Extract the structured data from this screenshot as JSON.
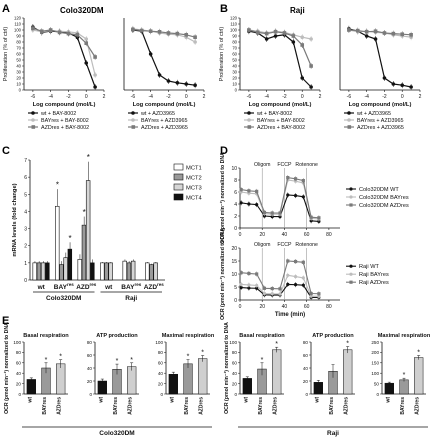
{
  "panels": {
    "A": {
      "letter": "A",
      "title": "Colo320DM"
    },
    "B": {
      "letter": "B",
      "title": "Raji"
    },
    "C": {
      "letter": "C"
    },
    "D": {
      "letter": "D"
    },
    "E": {
      "letter": "E"
    }
  },
  "colors": {
    "black": "#111111",
    "gray": "#7a7a7a",
    "light": "#bdbdbd",
    "grid": "#9a9a9a"
  },
  "chart_data": [
    {
      "id": "A-left",
      "type": "line",
      "xlabel": "Log compound (mol/L)",
      "ylabel": "Proliferation (% of ctrl)",
      "xlim": [
        -7,
        2
      ],
      "ylim": [
        0,
        120
      ],
      "xticks": [
        "-6",
        "-4",
        "-2",
        "0",
        "2"
      ],
      "yticks": [
        "0",
        "10",
        "20",
        "30",
        "40",
        "50",
        "60",
        "70",
        "80",
        "90",
        "100",
        "110",
        "120"
      ],
      "series": [
        {
          "name": "wt + BAY-8002",
          "x": [
            -6,
            -5,
            -4,
            -3,
            -2,
            -1,
            0,
            1
          ],
          "values": [
            105,
            96,
            98,
            97,
            95,
            88,
            45,
            5
          ]
        },
        {
          "name": "BAYres + BAY-8002",
          "x": [
            -6,
            -5,
            -4,
            -3,
            -2,
            -1,
            0,
            1
          ],
          "values": [
            100,
            97,
            99,
            98,
            97,
            95,
            85,
            25
          ]
        },
        {
          "name": "AZDres + BAY-8002",
          "x": [
            -6,
            -5,
            -4,
            -3,
            -2,
            -1,
            0,
            1
          ],
          "values": [
            103,
            98,
            100,
            96,
            94,
            92,
            78,
            55
          ]
        }
      ]
    },
    {
      "id": "A-right",
      "type": "line",
      "xlabel": "Log compound (mol/L)",
      "ylabel": "",
      "xlim": [
        -7,
        2
      ],
      "ylim": [
        0,
        120
      ],
      "xticks": [
        "-6",
        "-4",
        "-2",
        "0",
        "2"
      ],
      "yticks": [],
      "series": [
        {
          "name": "wt + AZD3965",
          "x": [
            -6,
            -5,
            -4,
            -3,
            -2,
            -1,
            0,
            1
          ],
          "values": [
            100,
            98,
            60,
            25,
            15,
            12,
            10,
            8
          ]
        },
        {
          "name": "BAYres + AZD3965",
          "x": [
            -6,
            -5,
            -4,
            -3,
            -2,
            -1,
            0,
            1
          ],
          "values": [
            102,
            100,
            98,
            95,
            93,
            92,
            88,
            80
          ]
        },
        {
          "name": "AZDres + AZD3965",
          "x": [
            -6,
            -5,
            -4,
            -3,
            -2,
            -1,
            0,
            1
          ],
          "values": [
            101,
            99,
            98,
            97,
            95,
            94,
            92,
            88
          ]
        }
      ]
    },
    {
      "id": "B-left",
      "type": "line",
      "xlabel": "Log compound (mol/L)",
      "ylabel": "Proliferation (% of ctrl)",
      "xlim": [
        -7,
        2
      ],
      "ylim": [
        0,
        120
      ],
      "xticks": [
        "-6",
        "-4",
        "-2",
        "0",
        "2"
      ],
      "yticks": [
        "0",
        "10",
        "20",
        "30",
        "40",
        "50",
        "60",
        "70",
        "80",
        "90",
        "100",
        "110",
        "120"
      ],
      "series": [
        {
          "name": "wt + BAY-8002",
          "x": [
            -6,
            -5,
            -4,
            -3,
            -2,
            -1,
            0,
            1
          ],
          "values": [
            98,
            95,
            85,
            90,
            92,
            80,
            20,
            5
          ]
        },
        {
          "name": "BAYres + BAY-8002",
          "x": [
            -6,
            -5,
            -4,
            -3,
            -2,
            -1,
            0,
            1
          ],
          "values": [
            100,
            98,
            95,
            98,
            96,
            92,
            88,
            85
          ]
        },
        {
          "name": "AZDres + BAY-8002",
          "x": [
            -6,
            -5,
            -4,
            -3,
            -2,
            -1,
            0,
            1
          ],
          "values": [
            100,
            96,
            94,
            97,
            95,
            90,
            75,
            40
          ]
        }
      ]
    },
    {
      "id": "B-right",
      "type": "line",
      "xlabel": "Log compound (mol/L)",
      "ylabel": "",
      "xlim": [
        -7,
        2
      ],
      "ylim": [
        0,
        120
      ],
      "xticks": [
        "-6",
        "-4",
        "-2",
        "0",
        "2"
      ],
      "yticks": [],
      "series": [
        {
          "name": "wt + AZD3965",
          "x": [
            -6,
            -5,
            -4,
            -3,
            -2,
            -1,
            0,
            1
          ],
          "values": [
            102,
            98,
            90,
            85,
            20,
            10,
            8,
            5
          ]
        },
        {
          "name": "BAYres + AZD3965",
          "x": [
            -6,
            -5,
            -4,
            -3,
            -2,
            -1,
            0,
            1
          ],
          "values": [
            100,
            97,
            98,
            96,
            95,
            92,
            90,
            88
          ]
        },
        {
          "name": "AZDres + AZD3965",
          "x": [
            -6,
            -5,
            -4,
            -3,
            -2,
            -1,
            0,
            1
          ],
          "values": [
            100,
            99,
            97,
            98,
            95,
            94,
            93,
            92
          ]
        }
      ]
    },
    {
      "id": "C",
      "type": "bar",
      "ylabel": "mRNA levels (fold change)",
      "ylim": [
        0,
        7
      ],
      "yticks": [
        "0",
        "1",
        "2",
        "3",
        "4",
        "5",
        "6",
        "7"
      ],
      "groups": [
        {
          "label": "wt",
          "superscript": "",
          "cell": "Colo320DM"
        },
        {
          "label": "BAY",
          "superscript": "res",
          "cell": "Colo320DM"
        },
        {
          "label": "AZD",
          "superscript": "res",
          "cell": "Colo320DM"
        },
        {
          "label": "wt",
          "superscript": "",
          "cell": "Raji"
        },
        {
          "label": "BAY",
          "superscript": "res",
          "cell": "Raji"
        },
        {
          "label": "AZD",
          "superscript": "res",
          "cell": "Raji"
        }
      ],
      "cell_labels": [
        "Colo320DM",
        "Raji"
      ],
      "series": [
        {
          "name": "MCT1",
          "values": [
            1.0,
            4.3,
            1.2,
            1.0,
            1.1,
            1.0
          ]
        },
        {
          "name": "MCT2",
          "values": [
            1.0,
            0.9,
            3.2,
            1.0,
            1.0,
            0.9
          ]
        },
        {
          "name": "MCT3",
          "values": [
            1.0,
            1.3,
            5.8,
            1.0,
            1.1,
            1.0
          ]
        },
        {
          "name": "MCT4",
          "values": [
            1.0,
            1.8,
            1.0,
            0,
            0,
            0
          ]
        }
      ],
      "errors": [
        [
          0.1,
          1.0,
          0.3,
          0.05,
          0.1,
          0.05
        ],
        [
          0.1,
          0.2,
          0.5,
          0.05,
          0.1,
          0.05
        ],
        [
          0.1,
          0.3,
          1.1,
          0.05,
          0.1,
          0.05
        ],
        [
          0.1,
          0.4,
          0.2,
          0,
          0,
          0
        ]
      ],
      "stars": [
        [
          1,
          0
        ],
        [
          1,
          3
        ],
        [
          2,
          1
        ],
        [
          2,
          2
        ]
      ]
    },
    {
      "id": "D-top",
      "type": "line",
      "ylabel": "OCR (pmol min⁻¹) normalized to DNA",
      "xlim": [
        0,
        90
      ],
      "ylim": [
        0,
        10
      ],
      "xticks": [
        "0",
        "20",
        "40",
        "60",
        "80"
      ],
      "yticks": [
        "0",
        "2",
        "4",
        "6",
        "8",
        "10"
      ],
      "events": [
        {
          "label": "Oligom",
          "x": 20
        },
        {
          "label": "FCCP",
          "x": 40
        },
        {
          "label": "Rotenone",
          "x": 60
        }
      ],
      "series": [
        {
          "name": "Colo320DM WT",
          "x": [
            1,
            8,
            15,
            22,
            29,
            36,
            43,
            50,
            57,
            64,
            71
          ],
          "values": [
            4.2,
            4.0,
            3.9,
            2.0,
            1.9,
            1.9,
            5.5,
            5.4,
            5.2,
            1.2,
            1.1
          ]
        },
        {
          "name": "Colo320DM BAYres",
          "x": [
            1,
            8,
            15,
            22,
            29,
            36,
            43,
            50,
            57,
            64,
            71
          ],
          "values": [
            6.0,
            5.8,
            5.7,
            2.4,
            2.3,
            2.3,
            8.0,
            7.8,
            7.5,
            1.6,
            1.5
          ]
        },
        {
          "name": "Colo320DM AZDres",
          "x": [
            1,
            8,
            15,
            22,
            29,
            36,
            43,
            50,
            57,
            64,
            71
          ],
          "values": [
            6.4,
            6.2,
            6.1,
            2.6,
            2.5,
            2.5,
            8.4,
            8.2,
            7.9,
            1.8,
            1.7
          ]
        }
      ]
    },
    {
      "id": "D-bottom",
      "type": "line",
      "xlabel": "Time (min)",
      "ylabel": "OCR (pmol min⁻¹) normalized to DNA",
      "xlim": [
        0,
        90
      ],
      "ylim": [
        0,
        20
      ],
      "xticks": [
        "0",
        "20",
        "40",
        "60",
        "80"
      ],
      "yticks": [
        "0",
        "5",
        "10",
        "15",
        "20"
      ],
      "events": [
        {
          "label": "Oligom",
          "x": 20
        },
        {
          "label": "FCCP",
          "x": 40
        },
        {
          "label": "Rotenone",
          "x": 60
        }
      ],
      "series": [
        {
          "name": "Raji WT",
          "x": [
            1,
            8,
            15,
            22,
            29,
            36,
            43,
            50,
            57,
            64,
            71
          ],
          "values": [
            4.8,
            4.6,
            4.5,
            2.0,
            1.9,
            1.9,
            6.0,
            5.9,
            5.7,
            1.0,
            1.0
          ]
        },
        {
          "name": "Raji BAYres",
          "x": [
            1,
            8,
            15,
            22,
            29,
            36,
            43,
            50,
            57,
            64,
            71
          ],
          "values": [
            6.0,
            5.8,
            5.6,
            2.5,
            2.4,
            2.3,
            9.5,
            9.0,
            8.5,
            1.5,
            1.4
          ]
        },
        {
          "name": "Raji AZDres",
          "x": [
            1,
            8,
            15,
            22,
            29,
            36,
            43,
            50,
            57,
            64,
            71
          ],
          "values": [
            10.5,
            10.2,
            10.0,
            4.5,
            4.4,
            4.3,
            15.0,
            14.8,
            14.5,
            2.5,
            2.4
          ]
        }
      ]
    },
    {
      "id": "E-colo",
      "type": "bar",
      "cell_line": "Colo320DM",
      "ylabel": "OCR (pmol min⁻¹) normalized to DNA",
      "categories": [
        "wt",
        "BAYres",
        "AZDres"
      ],
      "subplots": [
        {
          "title": "Basal respiration",
          "ylim": [
            0,
            100
          ],
          "yticks": [
            "0",
            "20",
            "40",
            "60",
            "80",
            "100"
          ],
          "values": [
            28,
            50,
            58
          ],
          "errors": [
            3,
            10,
            8
          ],
          "stars": [
            1,
            2
          ]
        },
        {
          "title": "ATP production",
          "ylim": [
            0,
            80
          ],
          "yticks": [
            "0",
            "20",
            "40",
            "60",
            "80"
          ],
          "values": [
            20,
            38,
            42
          ],
          "errors": [
            3,
            8,
            6
          ],
          "stars": [
            1,
            2
          ]
        },
        {
          "title": "Maximal respiration",
          "ylim": [
            0,
            100
          ],
          "yticks": [
            "0",
            "20",
            "40",
            "60",
            "80",
            "100"
          ],
          "values": [
            38,
            58,
            68
          ],
          "errors": [
            4,
            8,
            6
          ],
          "stars": [
            1,
            2
          ]
        }
      ]
    },
    {
      "id": "E-raji",
      "type": "bar",
      "cell_line": "Raji",
      "ylabel": "OCR (pmol min⁻¹) normalized to DNA",
      "categories": [
        "wt",
        "BAYres",
        "AZDres"
      ],
      "subplots": [
        {
          "title": "Basal respiration",
          "ylim": [
            0,
            100
          ],
          "yticks": [
            "0",
            "20",
            "40",
            "60",
            "80",
            "100"
          ],
          "values": [
            30,
            48,
            85
          ],
          "errors": [
            3,
            12,
            5
          ],
          "stars": [
            1,
            2
          ]
        },
        {
          "title": "ATP production",
          "ylim": [
            0,
            80
          ],
          "yticks": [
            "0",
            "20",
            "40",
            "60",
            "80"
          ],
          "values": [
            18,
            35,
            68
          ],
          "errors": [
            3,
            10,
            5
          ],
          "stars": [
            2
          ]
        },
        {
          "title": "Maximal respiration",
          "ylim": [
            0,
            250
          ],
          "yticks": [
            "0",
            "50",
            "100",
            "150",
            "200",
            "250"
          ],
          "values": [
            52,
            68,
            175
          ],
          "errors": [
            5,
            8,
            10
          ],
          "stars": [
            1,
            2
          ]
        }
      ]
    }
  ]
}
